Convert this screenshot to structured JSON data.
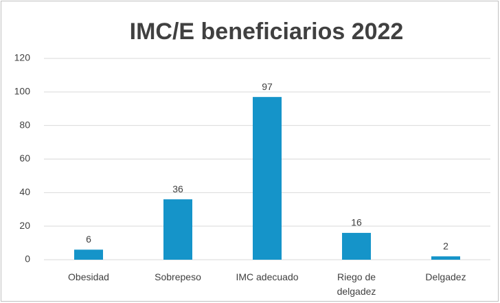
{
  "chart_data": {
    "type": "bar",
    "title": "IMC/E beneficiarios 2022",
    "categories": [
      "Obesidad",
      "Sobrepeso",
      "IMC adecuado",
      "Riego de delgadez",
      "Delgadez"
    ],
    "values": [
      6,
      36,
      97,
      16,
      2
    ],
    "color": "#1594c9",
    "ylim": [
      0,
      120
    ],
    "yticks": [
      0,
      20,
      40,
      60,
      80,
      100,
      120
    ],
    "grid": true
  }
}
